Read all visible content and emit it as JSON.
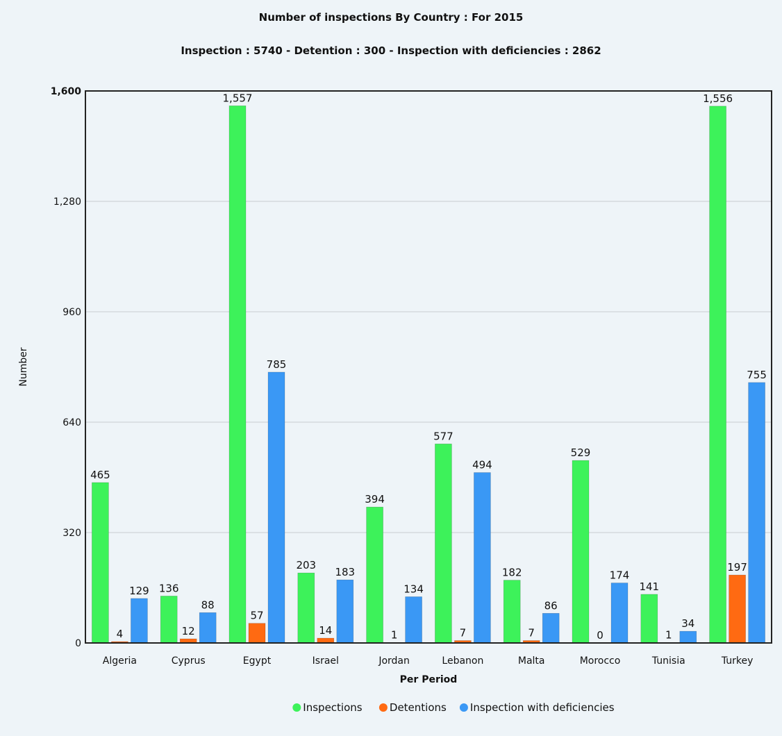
{
  "chart_data": {
    "type": "bar",
    "title": "Number of inspections By Country : For 2015",
    "subtitle": "Inspection : 5740 - Detention : 300 - Inspection with deficiencies : 2862",
    "xlabel": "Per Period",
    "ylabel": "Number",
    "ylim": [
      0,
      1600
    ],
    "yticks": [
      0,
      320,
      640,
      960,
      1280,
      1600
    ],
    "ytick_labels": [
      "0",
      "320",
      "640",
      "960",
      "1,280",
      "1,600"
    ],
    "grid": true,
    "legend_position": "bottom",
    "categories": [
      "Algeria",
      "Cyprus",
      "Egypt",
      "Israel",
      "Jordan",
      "Lebanon",
      "Malta",
      "Morocco",
      "Tunisia",
      "Turkey"
    ],
    "series": [
      {
        "name": "Inspections",
        "color": "#3df25a",
        "values": [
          465,
          136,
          1557,
          203,
          394,
          577,
          182,
          529,
          141,
          1556
        ],
        "labels": [
          "465",
          "136",
          "1,557",
          "203",
          "394",
          "577",
          "182",
          "529",
          "141",
          "1,556"
        ]
      },
      {
        "name": "Detentions",
        "color": "#ff6a12",
        "values": [
          4,
          12,
          57,
          14,
          1,
          7,
          7,
          0,
          1,
          197
        ],
        "labels": [
          "4",
          "12",
          "57",
          "14",
          "1",
          "7",
          "7",
          "0",
          "1",
          "197"
        ]
      },
      {
        "name": "Inspection with deficiencies",
        "color": "#3a98f5",
        "values": [
          129,
          88,
          785,
          183,
          134,
          494,
          86,
          174,
          34,
          755
        ],
        "labels": [
          "129",
          "88",
          "785",
          "183",
          "134",
          "494",
          "86",
          "174",
          "34",
          "755"
        ]
      }
    ]
  }
}
